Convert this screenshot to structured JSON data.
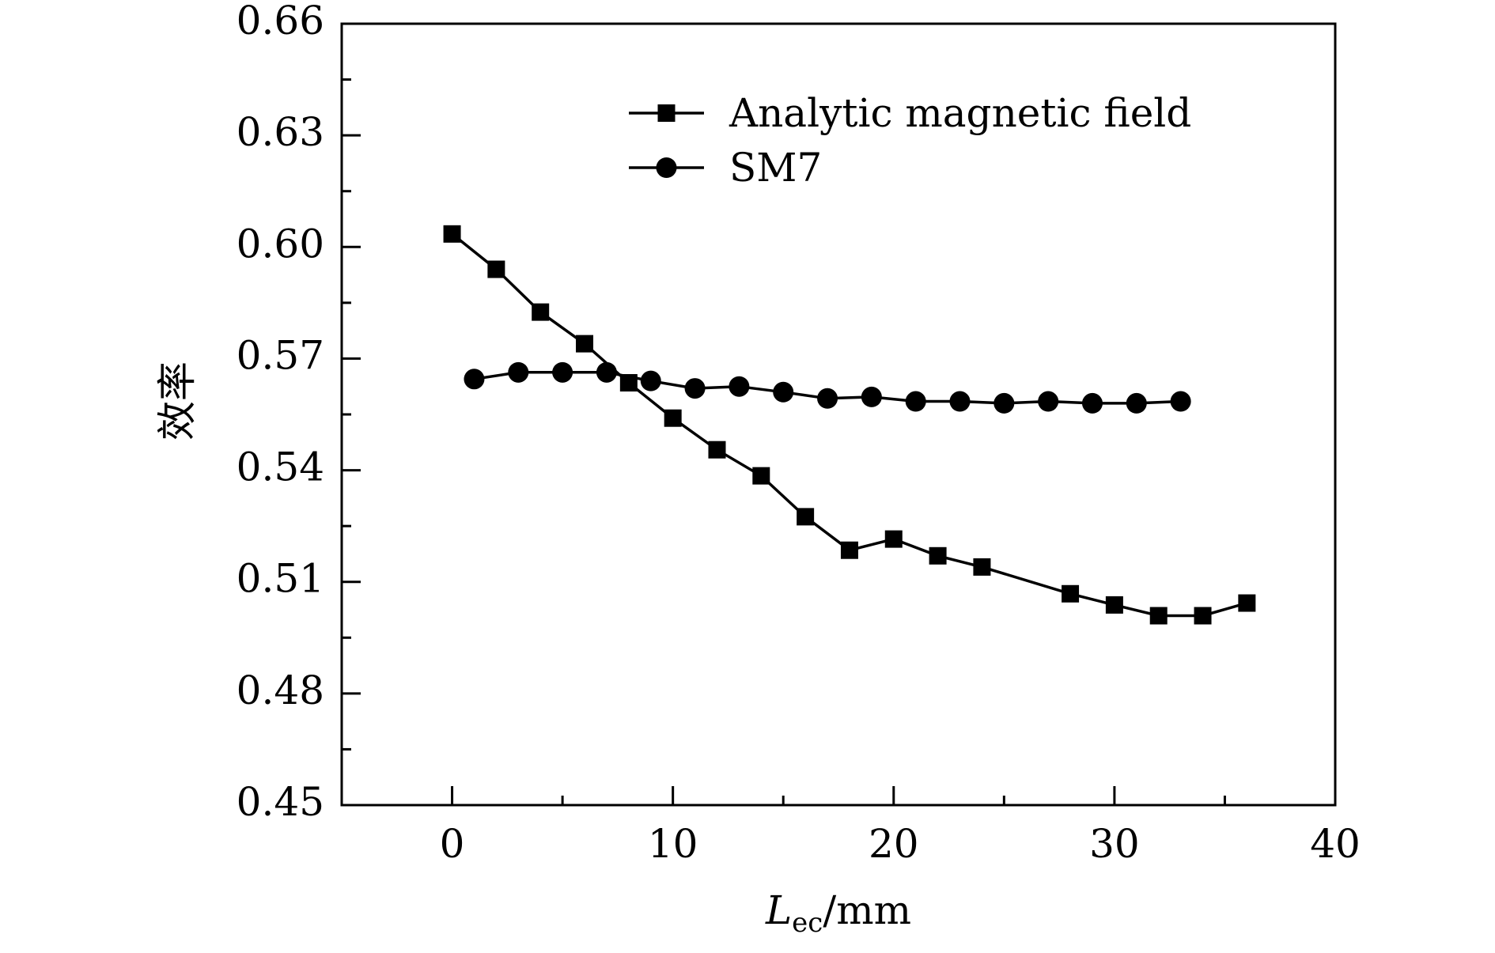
{
  "chart_data": {
    "type": "line",
    "title": "",
    "xlabel_main": "L",
    "xlabel_sub": "ec",
    "xlabel_unit": "/mm",
    "ylabel": "效率",
    "xlim": [
      -5,
      40
    ],
    "ylim": [
      0.45,
      0.66
    ],
    "x_ticks": [
      0,
      10,
      20,
      30,
      40
    ],
    "x_tick_labels": [
      "0",
      "10",
      "20",
      "30",
      "40"
    ],
    "y_ticks": [
      0.45,
      0.48,
      0.51,
      0.54,
      0.57,
      0.6,
      0.63,
      0.66
    ],
    "y_tick_labels": [
      "0.45",
      "0.48",
      "0.51",
      "0.54",
      "0.57",
      "0.60",
      "0.63",
      "0.66"
    ],
    "grid": false,
    "legend_position": "top-right",
    "series": [
      {
        "name": "Analytic magnetic field",
        "marker": "square",
        "color": "#000000",
        "x": [
          0,
          2,
          4,
          6,
          8,
          10,
          12,
          14,
          16,
          18,
          20,
          22,
          24,
          28,
          30,
          32,
          34,
          36
        ],
        "y": [
          0.6035,
          0.594,
          0.5825,
          0.574,
          0.5635,
          0.554,
          0.5455,
          0.5385,
          0.5275,
          0.5185,
          0.5215,
          0.517,
          0.514,
          0.5068,
          0.5038,
          0.5009,
          0.5009,
          0.5043
        ]
      },
      {
        "name": "SM7",
        "marker": "circle",
        "color": "#000000",
        "x": [
          1,
          3,
          5,
          7,
          9,
          11,
          13,
          15,
          17,
          19,
          21,
          23,
          25,
          27,
          29,
          31,
          33
        ],
        "y": [
          0.5645,
          0.5663,
          0.5663,
          0.5663,
          0.564,
          0.562,
          0.5625,
          0.561,
          0.5593,
          0.5597,
          0.5585,
          0.5585,
          0.558,
          0.5585,
          0.558,
          0.558,
          0.5585
        ]
      }
    ]
  }
}
